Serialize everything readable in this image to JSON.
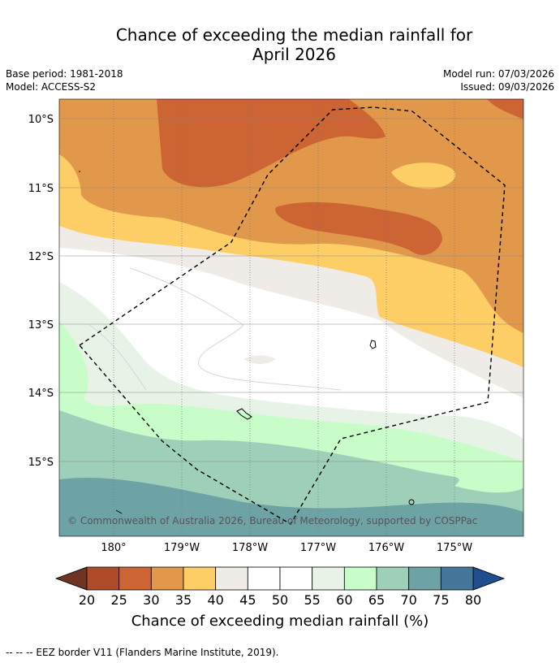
{
  "title": {
    "line1": "Chance of exceeding the median rainfall for",
    "line2": "April 2026"
  },
  "meta": {
    "base_period": "Base period: 1981-2018",
    "model": "Model: ACCESS-S2",
    "model_run": "Model run: 07/03/2026",
    "issued": "Issued: 09/03/2026"
  },
  "map": {
    "lat_labels": [
      "10°S",
      "11°S",
      "12°S",
      "13°S",
      "14°S",
      "15°S"
    ],
    "lon_labels": [
      "180°",
      "179°W",
      "178°W",
      "177°W",
      "176°W",
      "175°W"
    ],
    "copyright": "© Commonwealth of Australia 2026, Bureau of Meteorology, supported by COSPPac"
  },
  "colorbar": {
    "ticks": [
      "20",
      "25",
      "30",
      "35",
      "40",
      "45",
      "50",
      "55",
      "60",
      "65",
      "70",
      "75",
      "80"
    ],
    "colors": [
      "#6e3422",
      "#ae4c2a",
      "#cd6433",
      "#e1984a",
      "#fdcd66",
      "#efebe6",
      "#ffffff",
      "#ffffff",
      "#e8f3e8",
      "#c8fcc8",
      "#9ecfb9",
      "#6ea3a6",
      "#44789b",
      "#1f4e8e"
    ],
    "label": "Chance of exceeding median rainfall (%)"
  },
  "footnote": "--  --  -- EEZ border V11 (Flanders Marine Institute, 2019)."
}
